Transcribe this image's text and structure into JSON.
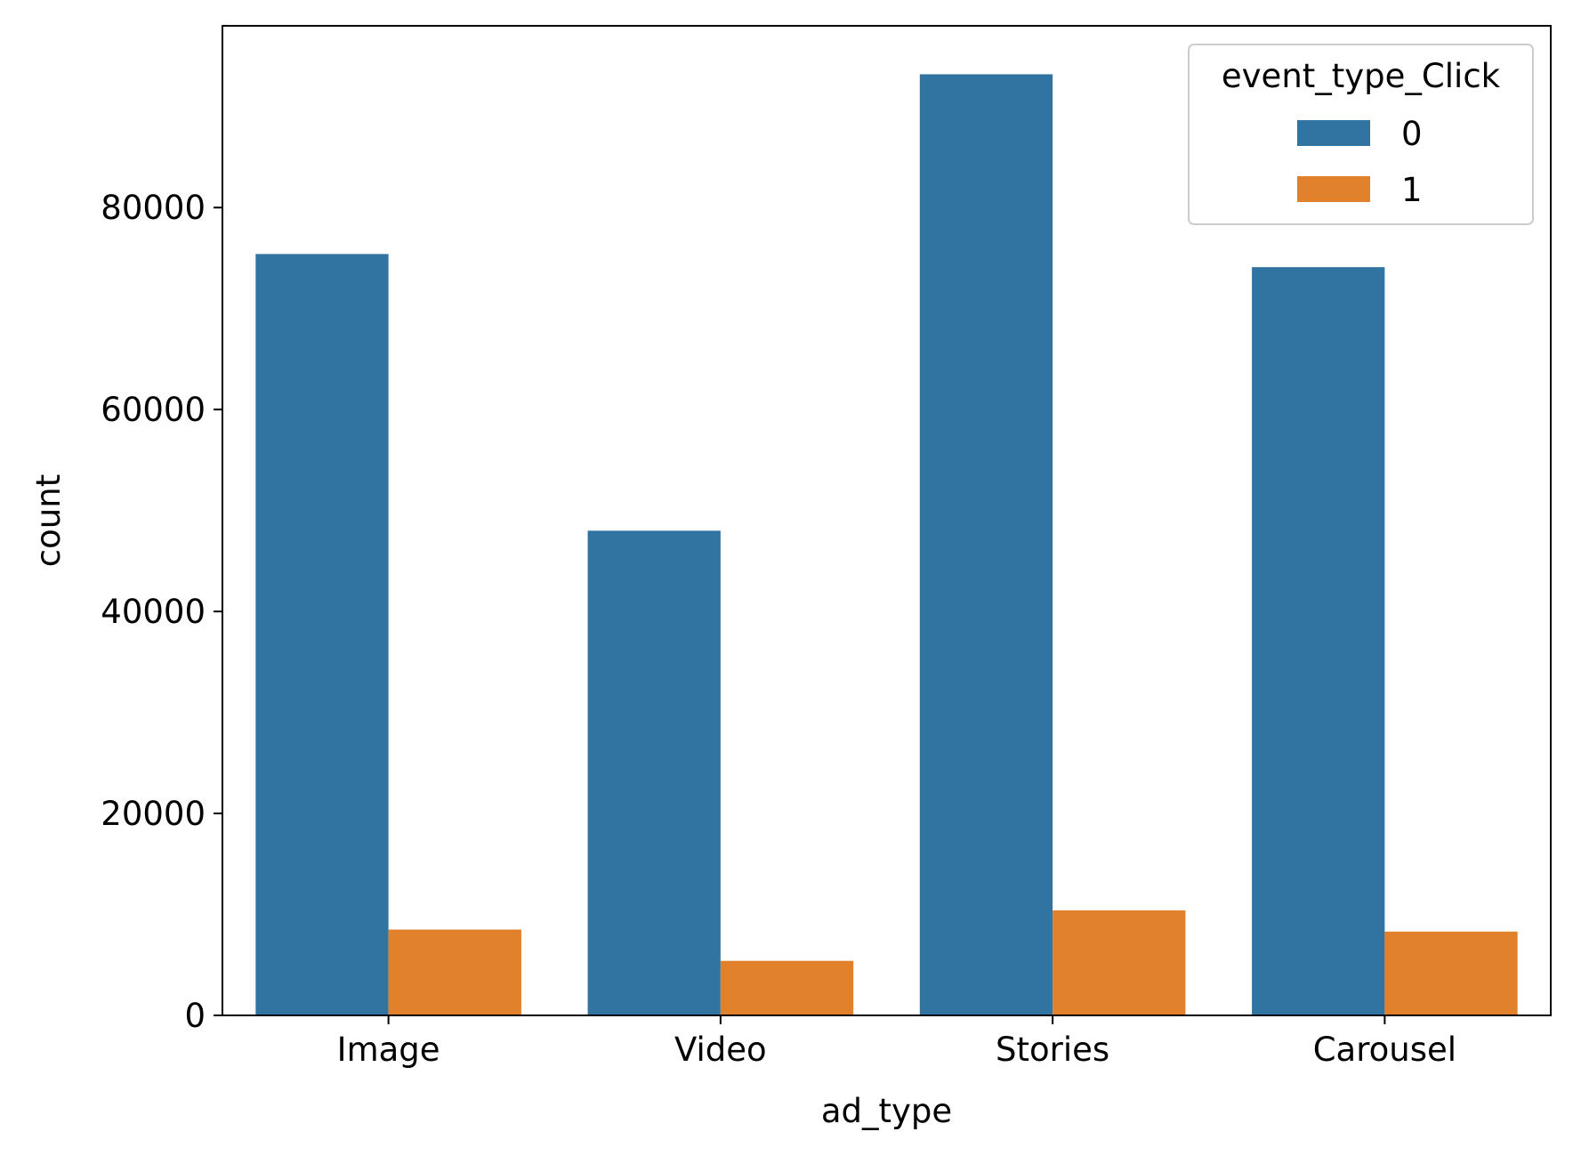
{
  "chart_data": {
    "type": "bar",
    "title": "",
    "xlabel": "ad_type",
    "ylabel": "count",
    "categories": [
      "Image",
      "Video",
      "Stories",
      "Carousel"
    ],
    "series": [
      {
        "name": "0",
        "color": "#3274a1",
        "values": [
          75400,
          48000,
          93200,
          74100
        ]
      },
      {
        "name": "1",
        "color": "#e1812c",
        "values": [
          8500,
          5400,
          10400,
          8300
        ]
      }
    ],
    "ylim": [
      0,
      98000
    ],
    "yticks": [
      0,
      20000,
      40000,
      60000,
      80000
    ],
    "grid": false,
    "legend": {
      "title": "event_type_Click",
      "placement": "top-right"
    }
  }
}
